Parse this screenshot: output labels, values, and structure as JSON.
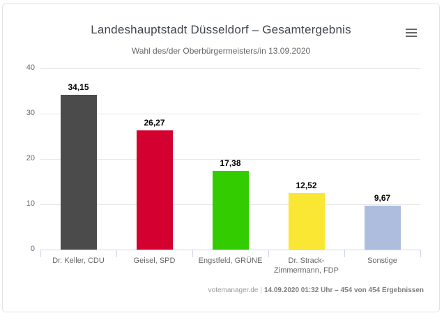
{
  "header": {
    "title": "Landeshauptstadt Düsseldorf – Gesamtergebnis",
    "subtitle": "Wahl des/der Oberbürgermeisters/in 13.09.2020"
  },
  "chart_data": {
    "type": "bar",
    "title": "Landeshauptstadt Düsseldorf – Gesamtergebnis",
    "subtitle": "Wahl des/der Oberbürgermeisters/in 13.09.2020",
    "categories": [
      "Dr. Keller, CDU",
      "Geisel, SPD",
      "Engstfeld, GRÜNE",
      "Dr. Strack-Zimmermann, FDP",
      "Sonstige"
    ],
    "values": [
      34.15,
      26.27,
      17.38,
      12.52,
      9.67
    ],
    "value_labels": [
      "34,15",
      "26,27",
      "17,38",
      "12,52",
      "9,67"
    ],
    "bar_colors": [
      "#4b4b4b",
      "#d4002f",
      "#33cc00",
      "#f9e733",
      "#aebdde"
    ],
    "xlabel": "",
    "ylabel": "",
    "ylim": [
      0,
      40
    ],
    "yticks": [
      0,
      10,
      20,
      30,
      40
    ],
    "grid": true,
    "legend": false
  },
  "footer": {
    "source": "votemanager.de",
    "separator": "|",
    "status": "14.09.2020 01:32 Uhr – 454 von 454 Ergebnissen"
  },
  "colors": {
    "title": "#40454d",
    "subtitle": "#666666",
    "axis_labels": "#666666",
    "gridline": "#e6e6e6",
    "axis_line": "#ccd6eb",
    "value_label": "#000000",
    "card_border": "#e2e2e2",
    "menu_icon": "#666666"
  }
}
